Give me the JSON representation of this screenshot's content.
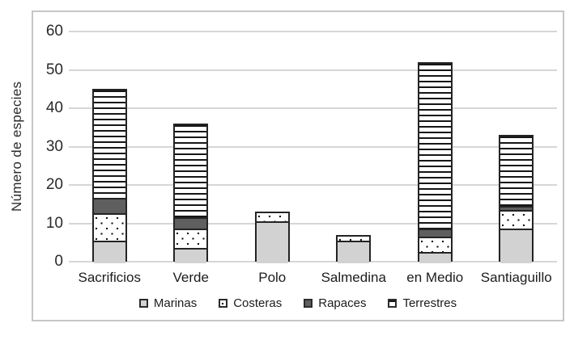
{
  "chart_data": {
    "type": "bar",
    "stacked": true,
    "title": "",
    "xlabel": "",
    "ylabel": "Número de especies",
    "ylim": [
      0,
      60
    ],
    "yticks": [
      0,
      10,
      20,
      30,
      40,
      50,
      60
    ],
    "grid": "horizontal-only",
    "legend_position": "bottom-center",
    "categories": [
      "Sacrificios",
      "Verde",
      "Polo",
      "Salmedina",
      "en Medio",
      "Santiaguillo"
    ],
    "series": [
      {
        "name": "Marinas",
        "pattern": "solid-light-gray",
        "color": "#d2d2d2",
        "values": [
          6,
          4,
          11,
          6,
          3,
          9
        ]
      },
      {
        "name": "Costeras",
        "pattern": "white-with-dots",
        "color": "#ffffff",
        "values": [
          7,
          5,
          2,
          1,
          4,
          5
        ]
      },
      {
        "name": "Rapaces",
        "pattern": "solid-dark-gray",
        "color": "#5f5f5f",
        "values": [
          4,
          3,
          0,
          0,
          2,
          1
        ]
      },
      {
        "name": "Terrestres",
        "pattern": "horizontal-stripes",
        "color": "#ffffff",
        "values": [
          28,
          24,
          0,
          0,
          43,
          18
        ]
      }
    ],
    "stack_totals": [
      45,
      36,
      13,
      7,
      52,
      33
    ]
  },
  "colors": {
    "figure_border": "#c6c6c6",
    "gridline": "#d6d6d6",
    "bar_outline": "#242424",
    "text": "#1f1f1f",
    "background": "#ffffff"
  }
}
